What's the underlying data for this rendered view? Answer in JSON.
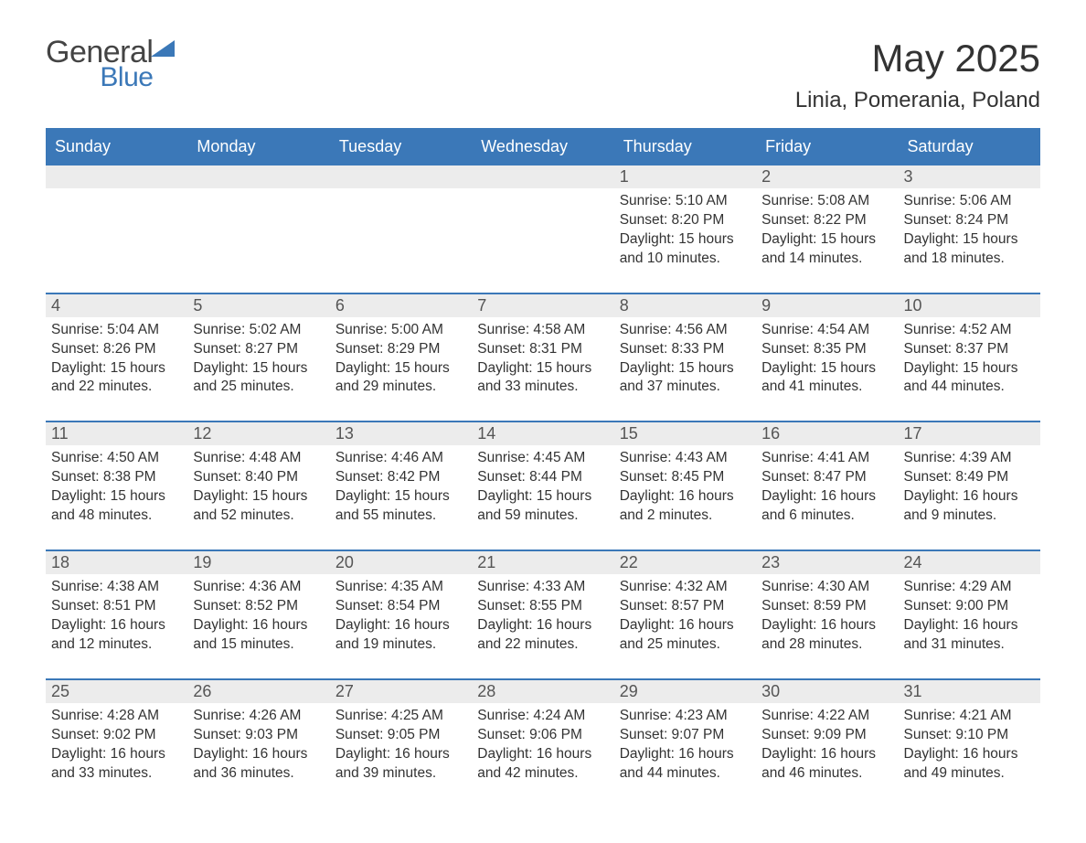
{
  "logo": {
    "word1": "General",
    "word2": "Blue"
  },
  "title": "May 2025",
  "location": "Linia, Pomerania, Poland",
  "colors": {
    "header_bg": "#3b78b8",
    "header_text": "#ffffff",
    "daynum_bg": "#ececec",
    "text": "#333333",
    "row_border": "#3b78b8"
  },
  "typography": {
    "title_size_pt": 32,
    "location_size_pt": 18,
    "body_size_pt": 12
  },
  "weekdays": [
    "Sunday",
    "Monday",
    "Tuesday",
    "Wednesday",
    "Thursday",
    "Friday",
    "Saturday"
  ],
  "weeks": [
    [
      null,
      null,
      null,
      null,
      {
        "n": "1",
        "sunrise": "Sunrise: 5:10 AM",
        "sunset": "Sunset: 8:20 PM",
        "day": "Daylight: 15 hours and 10 minutes."
      },
      {
        "n": "2",
        "sunrise": "Sunrise: 5:08 AM",
        "sunset": "Sunset: 8:22 PM",
        "day": "Daylight: 15 hours and 14 minutes."
      },
      {
        "n": "3",
        "sunrise": "Sunrise: 5:06 AM",
        "sunset": "Sunset: 8:24 PM",
        "day": "Daylight: 15 hours and 18 minutes."
      }
    ],
    [
      {
        "n": "4",
        "sunrise": "Sunrise: 5:04 AM",
        "sunset": "Sunset: 8:26 PM",
        "day": "Daylight: 15 hours and 22 minutes."
      },
      {
        "n": "5",
        "sunrise": "Sunrise: 5:02 AM",
        "sunset": "Sunset: 8:27 PM",
        "day": "Daylight: 15 hours and 25 minutes."
      },
      {
        "n": "6",
        "sunrise": "Sunrise: 5:00 AM",
        "sunset": "Sunset: 8:29 PM",
        "day": "Daylight: 15 hours and 29 minutes."
      },
      {
        "n": "7",
        "sunrise": "Sunrise: 4:58 AM",
        "sunset": "Sunset: 8:31 PM",
        "day": "Daylight: 15 hours and 33 minutes."
      },
      {
        "n": "8",
        "sunrise": "Sunrise: 4:56 AM",
        "sunset": "Sunset: 8:33 PM",
        "day": "Daylight: 15 hours and 37 minutes."
      },
      {
        "n": "9",
        "sunrise": "Sunrise: 4:54 AM",
        "sunset": "Sunset: 8:35 PM",
        "day": "Daylight: 15 hours and 41 minutes."
      },
      {
        "n": "10",
        "sunrise": "Sunrise: 4:52 AM",
        "sunset": "Sunset: 8:37 PM",
        "day": "Daylight: 15 hours and 44 minutes."
      }
    ],
    [
      {
        "n": "11",
        "sunrise": "Sunrise: 4:50 AM",
        "sunset": "Sunset: 8:38 PM",
        "day": "Daylight: 15 hours and 48 minutes."
      },
      {
        "n": "12",
        "sunrise": "Sunrise: 4:48 AM",
        "sunset": "Sunset: 8:40 PM",
        "day": "Daylight: 15 hours and 52 minutes."
      },
      {
        "n": "13",
        "sunrise": "Sunrise: 4:46 AM",
        "sunset": "Sunset: 8:42 PM",
        "day": "Daylight: 15 hours and 55 minutes."
      },
      {
        "n": "14",
        "sunrise": "Sunrise: 4:45 AM",
        "sunset": "Sunset: 8:44 PM",
        "day": "Daylight: 15 hours and 59 minutes."
      },
      {
        "n": "15",
        "sunrise": "Sunrise: 4:43 AM",
        "sunset": "Sunset: 8:45 PM",
        "day": "Daylight: 16 hours and 2 minutes."
      },
      {
        "n": "16",
        "sunrise": "Sunrise: 4:41 AM",
        "sunset": "Sunset: 8:47 PM",
        "day": "Daylight: 16 hours and 6 minutes."
      },
      {
        "n": "17",
        "sunrise": "Sunrise: 4:39 AM",
        "sunset": "Sunset: 8:49 PM",
        "day": "Daylight: 16 hours and 9 minutes."
      }
    ],
    [
      {
        "n": "18",
        "sunrise": "Sunrise: 4:38 AM",
        "sunset": "Sunset: 8:51 PM",
        "day": "Daylight: 16 hours and 12 minutes."
      },
      {
        "n": "19",
        "sunrise": "Sunrise: 4:36 AM",
        "sunset": "Sunset: 8:52 PM",
        "day": "Daylight: 16 hours and 15 minutes."
      },
      {
        "n": "20",
        "sunrise": "Sunrise: 4:35 AM",
        "sunset": "Sunset: 8:54 PM",
        "day": "Daylight: 16 hours and 19 minutes."
      },
      {
        "n": "21",
        "sunrise": "Sunrise: 4:33 AM",
        "sunset": "Sunset: 8:55 PM",
        "day": "Daylight: 16 hours and 22 minutes."
      },
      {
        "n": "22",
        "sunrise": "Sunrise: 4:32 AM",
        "sunset": "Sunset: 8:57 PM",
        "day": "Daylight: 16 hours and 25 minutes."
      },
      {
        "n": "23",
        "sunrise": "Sunrise: 4:30 AM",
        "sunset": "Sunset: 8:59 PM",
        "day": "Daylight: 16 hours and 28 minutes."
      },
      {
        "n": "24",
        "sunrise": "Sunrise: 4:29 AM",
        "sunset": "Sunset: 9:00 PM",
        "day": "Daylight: 16 hours and 31 minutes."
      }
    ],
    [
      {
        "n": "25",
        "sunrise": "Sunrise: 4:28 AM",
        "sunset": "Sunset: 9:02 PM",
        "day": "Daylight: 16 hours and 33 minutes."
      },
      {
        "n": "26",
        "sunrise": "Sunrise: 4:26 AM",
        "sunset": "Sunset: 9:03 PM",
        "day": "Daylight: 16 hours and 36 minutes."
      },
      {
        "n": "27",
        "sunrise": "Sunrise: 4:25 AM",
        "sunset": "Sunset: 9:05 PM",
        "day": "Daylight: 16 hours and 39 minutes."
      },
      {
        "n": "28",
        "sunrise": "Sunrise: 4:24 AM",
        "sunset": "Sunset: 9:06 PM",
        "day": "Daylight: 16 hours and 42 minutes."
      },
      {
        "n": "29",
        "sunrise": "Sunrise: 4:23 AM",
        "sunset": "Sunset: 9:07 PM",
        "day": "Daylight: 16 hours and 44 minutes."
      },
      {
        "n": "30",
        "sunrise": "Sunrise: 4:22 AM",
        "sunset": "Sunset: 9:09 PM",
        "day": "Daylight: 16 hours and 46 minutes."
      },
      {
        "n": "31",
        "sunrise": "Sunrise: 4:21 AM",
        "sunset": "Sunset: 9:10 PM",
        "day": "Daylight: 16 hours and 49 minutes."
      }
    ]
  ]
}
